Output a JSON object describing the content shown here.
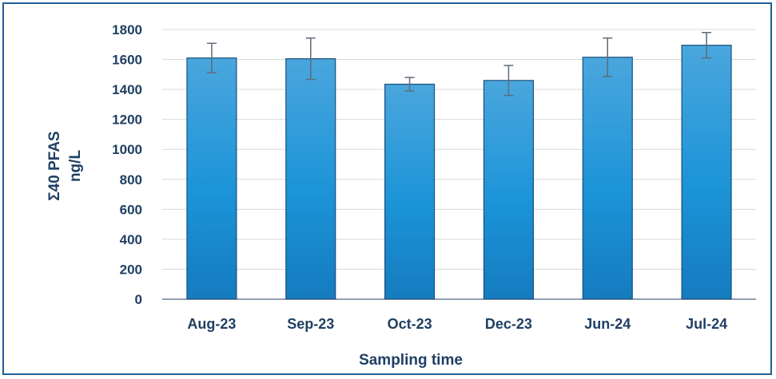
{
  "chart_data": {
    "type": "bar",
    "categories": [
      "Aug-23",
      "Sep-23",
      "Oct-23",
      "Dec-23",
      "Jun-24",
      "Jul-24"
    ],
    "values": [
      1610,
      1605,
      1435,
      1460,
      1615,
      1695
    ],
    "error": [
      98,
      138,
      45,
      100,
      128,
      85
    ],
    "xlabel": "Sampling time",
    "ylabel_lines": [
      "Σ40 PFAS",
      "ng/L"
    ],
    "ylim": [
      0,
      1800
    ],
    "yticks": [
      0,
      200,
      400,
      600,
      800,
      1000,
      1200,
      1400,
      1600,
      1800
    ],
    "grid": true,
    "legend": "none",
    "colors": {
      "bar_top": "#4aa6dd",
      "bar_mid": "#1c94d8",
      "bar_bottom": "#157bbf",
      "bar_edge": "#1a4f7a",
      "error_bar": "#5f6b78",
      "grid": "#d9d9d9",
      "text": "#1f3f63",
      "frame": "#1f5f96"
    }
  }
}
